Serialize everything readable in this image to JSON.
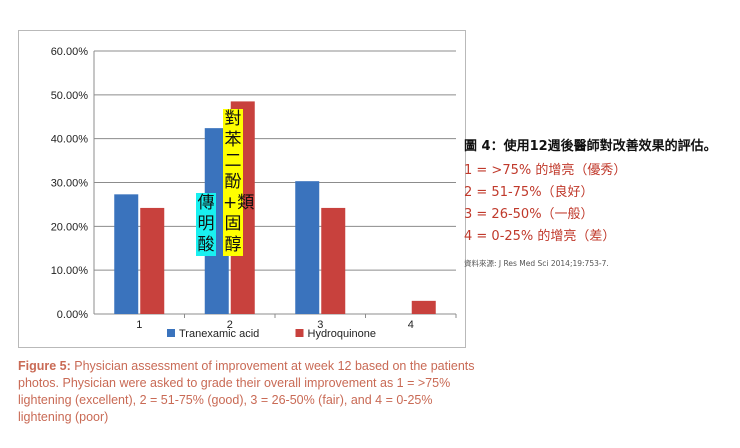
{
  "chart_data": {
    "type": "bar",
    "categories": [
      "1",
      "2",
      "3",
      "4"
    ],
    "series": [
      {
        "name": "Tranexamic acid",
        "color": "#3a73bd",
        "values": [
          27.3,
          42.4,
          30.3,
          0
        ]
      },
      {
        "name": "Hydroquinone",
        "color": "#c8413d",
        "values": [
          24.2,
          48.5,
          24.2,
          3.0
        ]
      }
    ],
    "yticks": [
      "0.00%",
      "10.00%",
      "20.00%",
      "30.00%",
      "40.00%",
      "50.00%",
      "60.00%"
    ],
    "ylim": [
      0,
      60
    ],
    "grid": true,
    "legend_position": "bottom",
    "title": "",
    "xlabel": "",
    "ylabel": ""
  },
  "overlays": {
    "left_label": "傳明酸",
    "right_label": "對苯二酚+類固醇"
  },
  "caption": {
    "label": "Figure 5:",
    "text": " Physician assessment of improvement at week 12 based on the patients photos. Physician were asked to grade their overall improvement as 1 = >75% lightening (excellent), 2 = 51-75% (good), 3 = 26-50% (fair), and 4 = 0-25% lightening (poor)"
  },
  "side_panel": {
    "title": "圖 4：使用12週後醫師對改善效果的評估。",
    "items": [
      "1 = >75% 的增亮（優秀）",
      "2 = 51-75%（良好）",
      "3 = 26-50%（一般）",
      "4 = 0-25% 的增亮（差）"
    ],
    "source": "資料來源: J Res Med Sci 2014;19:753-7."
  }
}
